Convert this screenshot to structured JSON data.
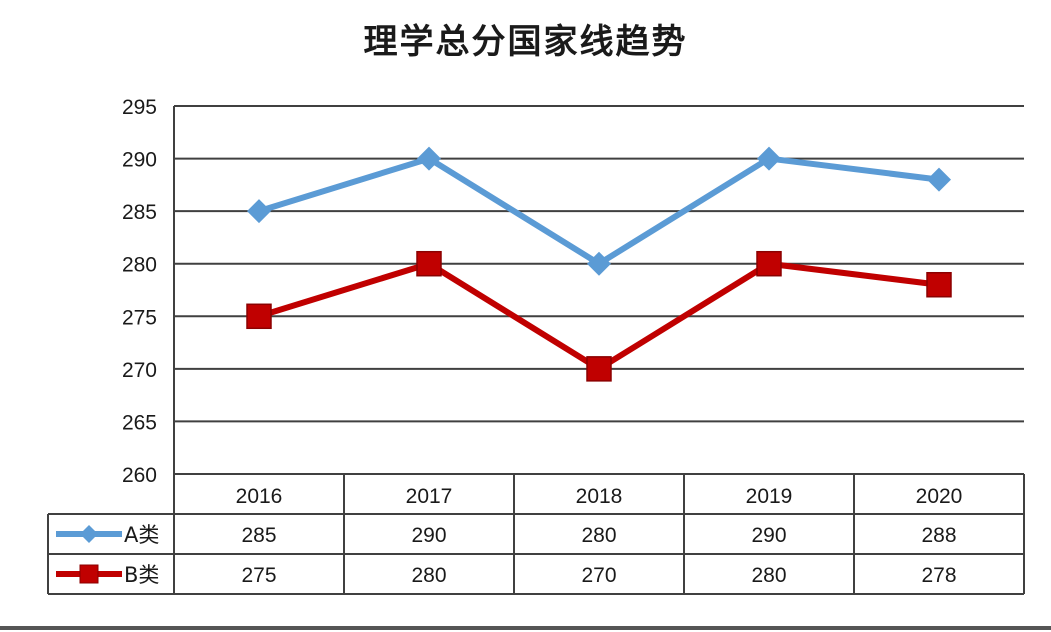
{
  "chart_data": {
    "type": "line",
    "title": "理学总分国家线趋势",
    "categories": [
      "2016",
      "2017",
      "2018",
      "2019",
      "2020"
    ],
    "ylim": [
      260,
      295
    ],
    "yticks": [
      260,
      265,
      270,
      275,
      280,
      285,
      290,
      295
    ],
    "grid": true,
    "legend_placement": "data-table",
    "series": [
      {
        "name": "A类",
        "values": [
          285,
          290,
          280,
          290,
          288
        ],
        "color": "#5b9bd5",
        "marker": "diamond"
      },
      {
        "name": "B类",
        "values": [
          275,
          280,
          270,
          280,
          278
        ],
        "color": "#c00000",
        "marker": "square"
      }
    ]
  }
}
